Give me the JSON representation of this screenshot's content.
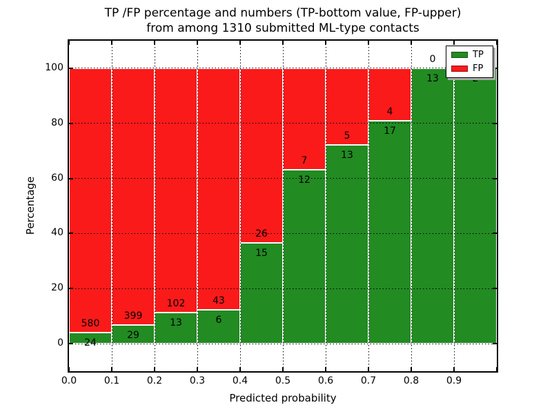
{
  "figure": {
    "title_line1": "TP /FP percentage and numbers (TP-bottom value, FP-upper)",
    "title_line2": "from among 1310 submitted ML-type contacts",
    "xlabel": "Predicted probability",
    "ylabel": "Percentage"
  },
  "legend": {
    "position": "upper right",
    "items": [
      {
        "label": "TP",
        "color": "#228B22"
      },
      {
        "label": "FP",
        "color": "#FA1A1A"
      }
    ]
  },
  "chart_data": {
    "type": "bar",
    "variant": "stacked-100-percent",
    "title": "TP /FP percentage and numbers (TP-bottom value, FP-upper)\nfrom among 1310 submitted ML-type contacts",
    "xlabel": "Predicted probability",
    "ylabel": "Percentage",
    "total_contacts": 1310,
    "bin_width": 0.1,
    "bin_starts": [
      0.0,
      0.1,
      0.2,
      0.3,
      0.4,
      0.5,
      0.6,
      0.7,
      0.8,
      0.9
    ],
    "series": [
      {
        "name": "TP",
        "color": "#228B22",
        "counts": [
          24,
          29,
          13,
          6,
          15,
          12,
          13,
          17,
          13,
          2
        ]
      },
      {
        "name": "FP",
        "color": "#FA1A1A",
        "counts": [
          580,
          399,
          102,
          43,
          26,
          7,
          5,
          4,
          0,
          0
        ]
      }
    ],
    "tp_percentages": [
      3.97,
      6.78,
      11.3,
      12.24,
      36.59,
      63.16,
      72.22,
      80.95,
      100.0,
      100.0
    ],
    "annotation_note": "FP count printed above TP/FP boundary, TP count below",
    "xticks": [
      "0.0",
      "0.1",
      "0.2",
      "0.3",
      "0.4",
      "0.5",
      "0.6",
      "0.7",
      "0.8",
      "0.9"
    ],
    "yticks": [
      0,
      20,
      40,
      60,
      80,
      100
    ],
    "xlim": [
      0.0,
      1.0
    ],
    "ylim": [
      -10,
      110
    ],
    "grid": true,
    "grid_style": "dotted",
    "legend_position": "upper right"
  }
}
